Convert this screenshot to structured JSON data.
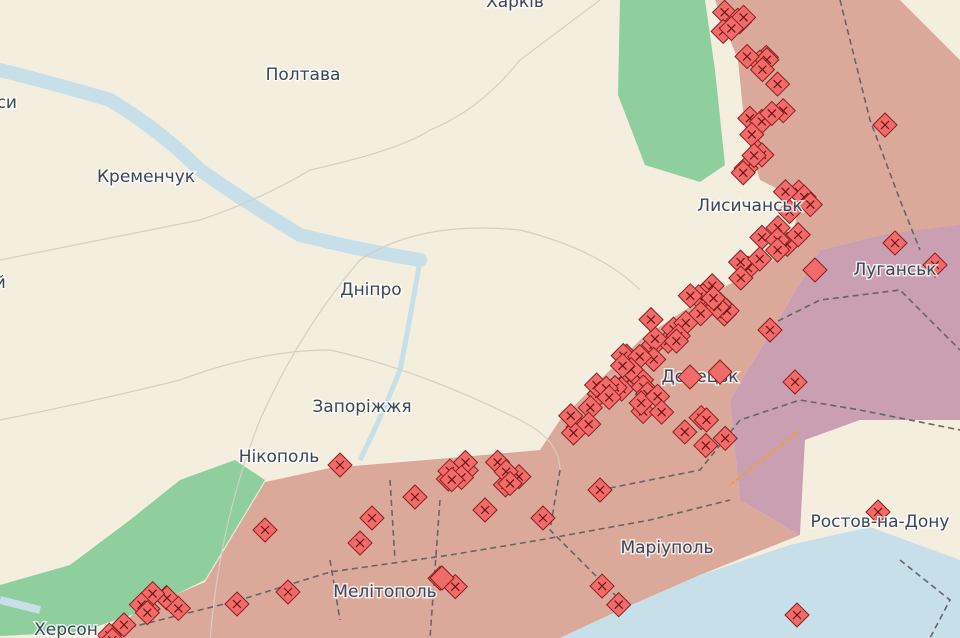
{
  "map": {
    "labels": [
      {
        "text": "Харків"
      },
      {
        "text": "Полтава"
      },
      {
        "text": "Черкаси"
      },
      {
        "text": "Кременчук"
      },
      {
        "text": "Кропивницький"
      },
      {
        "text": "Дніпро"
      },
      {
        "text": "Запоріжжя"
      },
      {
        "text": "Нікополь"
      },
      {
        "text": "Херсон"
      },
      {
        "text": "Мелітополь"
      },
      {
        "text": "Маріуполь"
      },
      {
        "text": "Донецьк"
      },
      {
        "text": "Лисичанськ"
      },
      {
        "text": "Луганськ"
      },
      {
        "text": "Ростов-на-Дону"
      }
    ]
  }
}
